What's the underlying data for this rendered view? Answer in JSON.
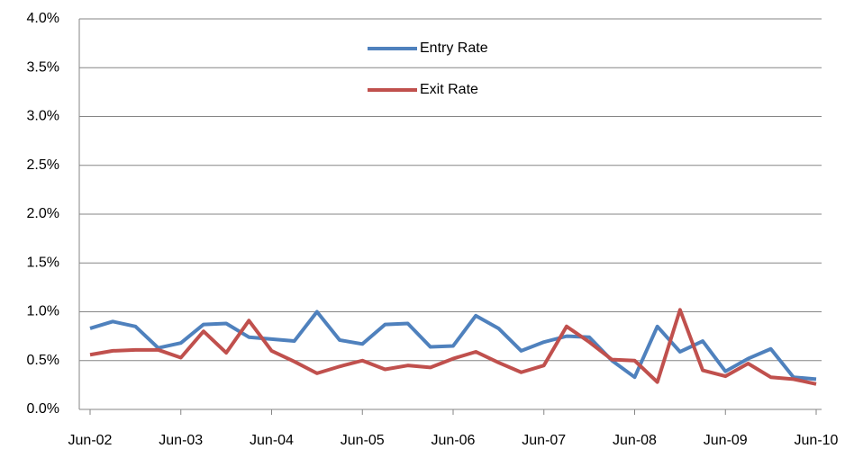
{
  "chart_data": {
    "type": "line",
    "categories": [
      "Jun-02",
      null,
      null,
      null,
      "Jun-03",
      null,
      null,
      null,
      "Jun-04",
      null,
      null,
      null,
      "Jun-05",
      null,
      null,
      null,
      "Jun-06",
      null,
      null,
      null,
      "Jun-07",
      null,
      null,
      null,
      "Jun-08",
      null,
      null,
      null,
      "Jun-09",
      null,
      null,
      null,
      "Jun-10"
    ],
    "series": [
      {
        "name": "Entry Rate",
        "color": "#4f81bd",
        "values": [
          0.83,
          0.9,
          0.85,
          0.63,
          0.68,
          0.87,
          0.88,
          0.74,
          0.72,
          0.7,
          1.0,
          0.71,
          0.67,
          0.87,
          0.88,
          0.64,
          0.65,
          0.96,
          0.83,
          0.6,
          0.69,
          0.75,
          0.74,
          0.5,
          0.33,
          0.85,
          0.59,
          0.7,
          0.39,
          0.52,
          0.62,
          0.33,
          0.31
        ]
      },
      {
        "name": "Exit Rate",
        "color": "#c0504d",
        "values": [
          0.56,
          0.6,
          0.61,
          0.61,
          0.53,
          0.8,
          0.58,
          0.91,
          0.6,
          0.49,
          0.37,
          0.44,
          0.5,
          0.41,
          0.45,
          0.43,
          0.52,
          0.59,
          0.48,
          0.38,
          0.45,
          0.85,
          0.69,
          0.51,
          0.5,
          0.28,
          1.02,
          0.4,
          0.34,
          0.47,
          0.33,
          0.31,
          0.26
        ]
      }
    ],
    "ylim": [
      0,
      4
    ],
    "yticks": [
      {
        "value": 0,
        "label": "0.0%"
      },
      {
        "value": 0.5,
        "label": "0.5%"
      },
      {
        "value": 1,
        "label": "1.0%"
      },
      {
        "value": 1.5,
        "label": "1.5%"
      },
      {
        "value": 2,
        "label": "2.0%"
      },
      {
        "value": 2.5,
        "label": "2.5%"
      },
      {
        "value": 3,
        "label": "3.0%"
      },
      {
        "value": 3.5,
        "label": "3.5%"
      },
      {
        "value": 4,
        "label": "4.0%"
      }
    ],
    "grid": true
  }
}
